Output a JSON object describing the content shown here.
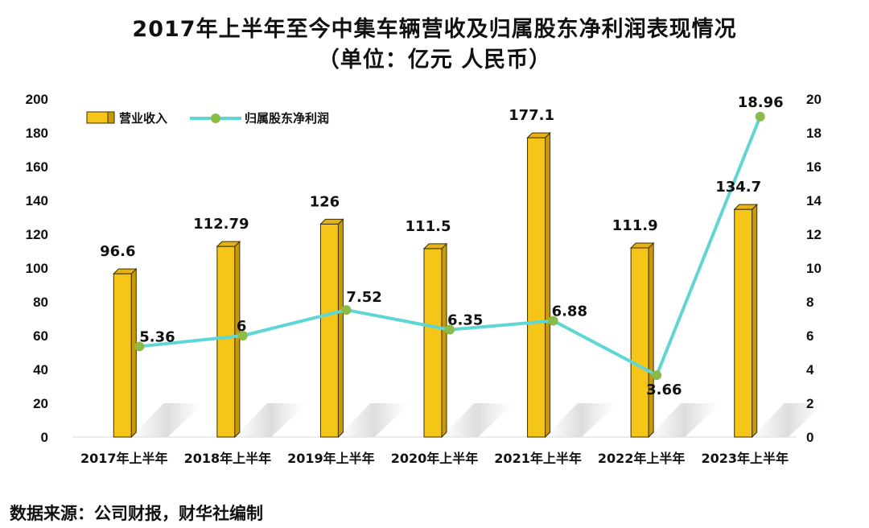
{
  "title_line1": "2017年上半年至今中集车辆营收及归属股东净利润表现情况",
  "title_line2": "（单位：亿元 人民币）",
  "source": "数据来源：公司财报，财华社编制",
  "chart_data": {
    "type": "bar",
    "categories": [
      "2017年上半年",
      "2018年上半年",
      "2019年上半年",
      "2020年上半年",
      "2021年上半年",
      "2022年上半年",
      "2023年上半年"
    ],
    "series": [
      {
        "name": "营业收入",
        "type": "bar",
        "axis": "left",
        "values": [
          96.6,
          112.79,
          126,
          111.5,
          177.1,
          111.9,
          134.7
        ],
        "labels": [
          "96.6",
          "112.79",
          "126",
          "111.5",
          "177.1",
          "111.9",
          "134.7"
        ]
      },
      {
        "name": "归属股东净利润",
        "type": "line",
        "axis": "right",
        "values": [
          5.36,
          6,
          7.52,
          6.35,
          6.88,
          3.66,
          18.96
        ],
        "labels": [
          "5.36",
          "6",
          "7.52",
          "6.35",
          "6.88",
          "3.66",
          "18.96"
        ]
      }
    ],
    "ylim_left": [
      0,
      200
    ],
    "ylim_right": [
      0,
      20
    ],
    "yticks_left": [
      0,
      20,
      40,
      60,
      80,
      100,
      120,
      140,
      160,
      180,
      200
    ],
    "yticks_right": [
      0,
      2,
      4,
      6,
      8,
      10,
      12,
      14,
      16,
      18,
      20
    ],
    "legend_position": "top-left",
    "grid": false,
    "colors": {
      "bar": "#F5C518",
      "bar_side": "#C89A0A",
      "bar_top": "#E6B312",
      "line": "#5ED6D6",
      "marker": "#8DBB4A"
    }
  }
}
